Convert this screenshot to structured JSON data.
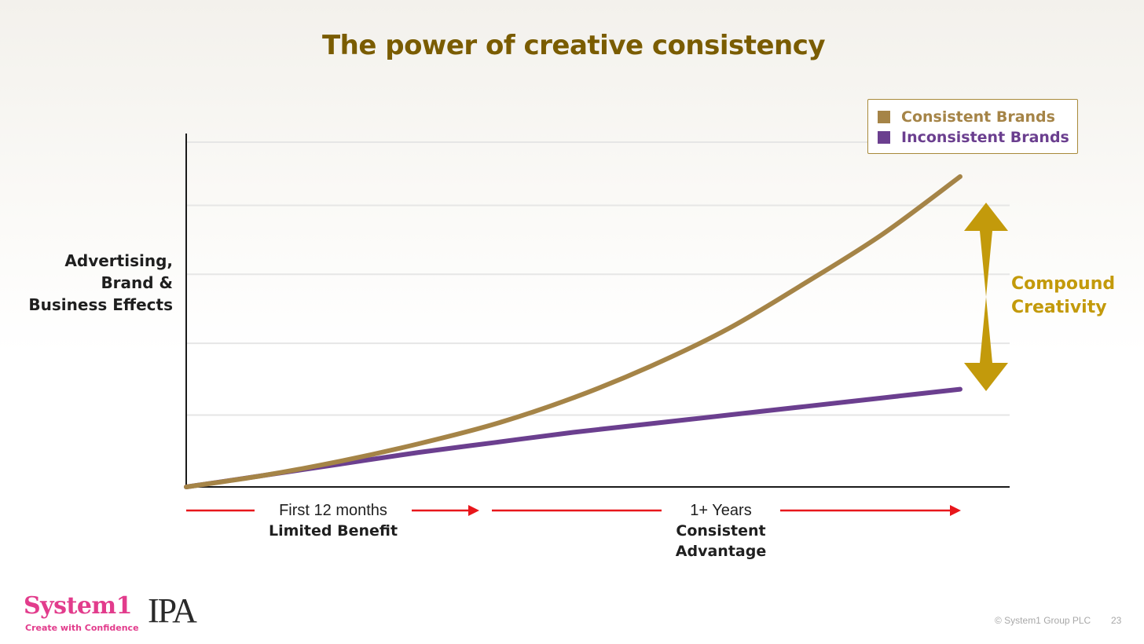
{
  "slide": {
    "title": "The power of creative consistency",
    "compound_label": [
      "Compound",
      "Creativity"
    ],
    "phases": [
      {
        "line1": "First 12 months",
        "line2": "Limited Benefit"
      },
      {
        "line1": "1+ Years",
        "line2": [
          "Consistent",
          "Advantage"
        ]
      }
    ],
    "logos": {
      "system1": "System1",
      "tagline": "Create with Confidence",
      "ipa": "IPA"
    },
    "copyright": "© System1 Group PLC",
    "page_number": "23"
  },
  "colors": {
    "consistent": "#a58447",
    "inconsistent": "#6b3f8f",
    "title": "#7a5c00",
    "compound_arrow": "#c39a0b",
    "timeline_arrow": "#e8161b",
    "brand_pink": "#e23c8c"
  },
  "icons": {
    "compound_arrow": "double-headed-arrow-icon",
    "timeline_arrow": "right-arrow-icon"
  },
  "chart_data": {
    "type": "line",
    "ylabel": [
      "Advertising,",
      "Brand &",
      "Business Effects"
    ],
    "xlabel": "",
    "x": [
      0,
      0.1,
      0.2,
      0.3,
      0.4,
      0.5,
      0.6,
      0.7,
      0.8,
      0.9,
      1.0
    ],
    "xlim": [
      0,
      1.064
    ],
    "ylim": [
      0,
      1.23
    ],
    "grid": true,
    "gridlines": [
      0.25,
      0.5,
      0.74,
      0.98,
      1.2
    ],
    "legend_position": "top-right",
    "series": [
      {
        "name": "Consistent Brands",
        "values": [
          0.0,
          0.04,
          0.09,
          0.15,
          0.22,
          0.31,
          0.42,
          0.55,
          0.71,
          0.88,
          1.08
        ]
      },
      {
        "name": "Inconsistent Brands",
        "values": [
          0.0,
          0.04,
          0.08,
          0.12,
          0.155,
          0.19,
          0.22,
          0.25,
          0.28,
          0.31,
          0.34
        ]
      }
    ]
  }
}
